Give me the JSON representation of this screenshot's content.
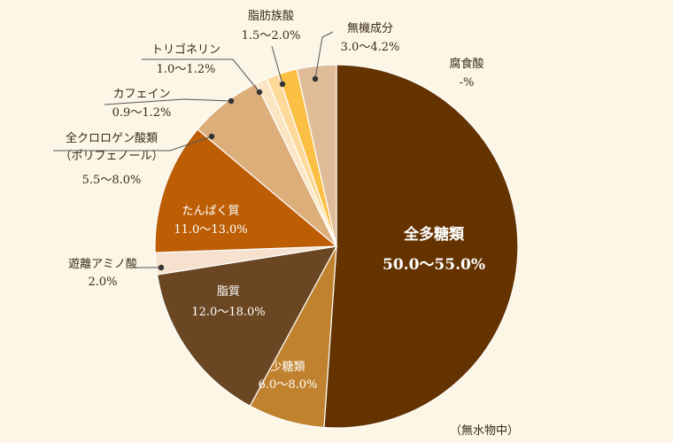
{
  "chart_data": {
    "type": "pie",
    "note": "（無水物中）",
    "slices": [
      {
        "label": "全多糖類",
        "range_text": "50.0〜55.0%",
        "value": 52.5,
        "color": "#653300",
        "label_style": "inside-big"
      },
      {
        "label": "少糖類",
        "range_text": "6.0〜8.0%",
        "value": 7.0,
        "color": "#c0822e",
        "label_style": "inside"
      },
      {
        "label": "脂質",
        "range_text": "12.0〜18.0%",
        "value": 15.0,
        "color": "#6a4722",
        "label_style": "inside"
      },
      {
        "label": "遊離アミノ酸",
        "range_text": "2.0%",
        "value": 2.0,
        "color": "#f6e1cf",
        "label_style": "outside"
      },
      {
        "label": "たんぱく質",
        "range_text": "11.0〜13.0%",
        "value": 12.0,
        "color": "#bd5e05",
        "label_style": "inside"
      },
      {
        "label": "全クロロゲン酸類\n（ポリフェノール）",
        "range_text": "5.5〜8.0%",
        "value": 6.75,
        "color": "#dcae7a",
        "label_style": "outside"
      },
      {
        "label": "カフェイン",
        "range_text": "0.9〜1.2%",
        "value": 1.05,
        "color": "#fbe6c3",
        "label_style": "outside"
      },
      {
        "label": "トリゴネリン",
        "range_text": "1.0〜1.2%",
        "value": 1.1,
        "color": "#fdd99a",
        "label_style": "outside"
      },
      {
        "label": "脂肪族酸",
        "range_text": "1.5〜2.0%",
        "value": 1.75,
        "color": "#fbbf44",
        "label_style": "outside"
      },
      {
        "label": "無機成分",
        "range_text": "3.0〜4.2%",
        "value": 3.6,
        "color": "#ddbc97",
        "label_style": "outside"
      },
      {
        "label": "腐食酸",
        "range_text": "-%",
        "value": 0,
        "color": "#653300",
        "label_style": "outside"
      }
    ]
  }
}
